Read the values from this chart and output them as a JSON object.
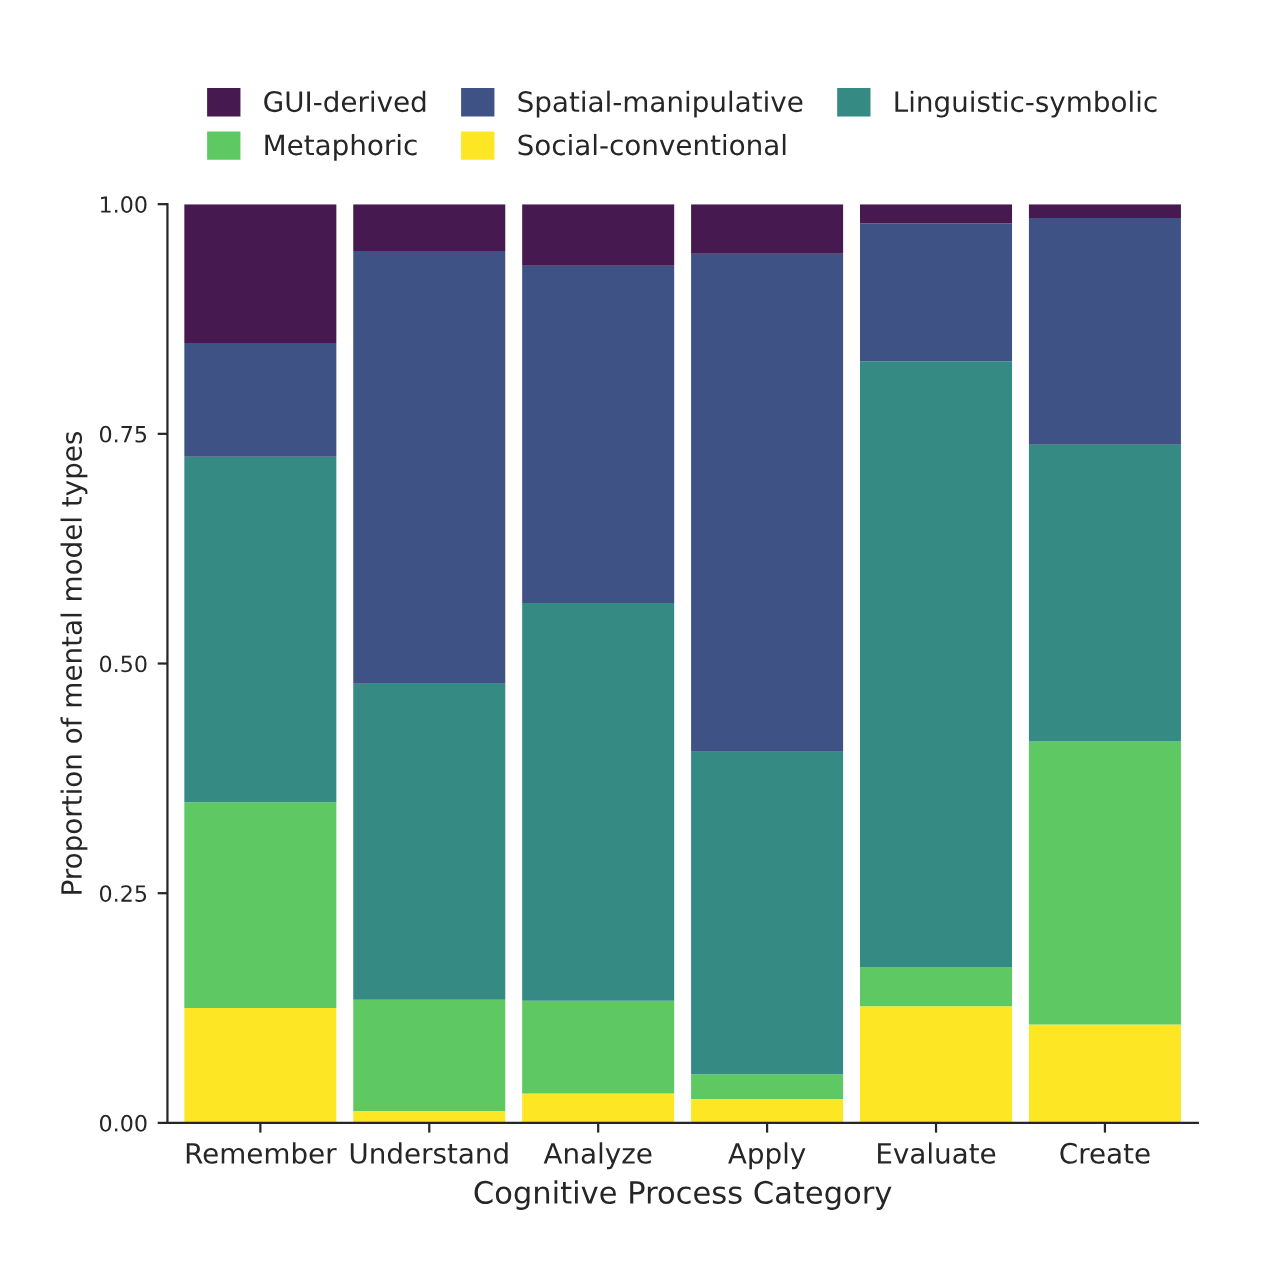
{
  "chart_data": {
    "type": "bar",
    "stacked": true,
    "xlabel": "Cognitive Process Category",
    "ylabel": "Proportion of mental model types",
    "categories": [
      "Remember",
      "Understand",
      "Analyze",
      "Apply",
      "Evaluate",
      "Create"
    ],
    "series": [
      {
        "name": "Social-conventional",
        "color": "#fde725",
        "values": [
          0.125,
          0.013,
          0.032,
          0.026,
          0.127,
          0.107
        ]
      },
      {
        "name": "Metaphoric",
        "color": "#5ec962",
        "values": [
          0.224,
          0.121,
          0.101,
          0.027,
          0.042,
          0.308
        ]
      },
      {
        "name": "Linguistic-symbolic",
        "color": "#358a84",
        "values": [
          0.376,
          0.344,
          0.433,
          0.351,
          0.66,
          0.323
        ]
      },
      {
        "name": "Spatial-manipulative",
        "color": "#3f5285",
        "values": [
          0.124,
          0.471,
          0.367,
          0.542,
          0.15,
          0.247
        ]
      },
      {
        "name": "GUI-derived",
        "color": "#461a50",
        "values": [
          0.151,
          0.051,
          0.067,
          0.054,
          0.021,
          0.015
        ]
      }
    ],
    "ylim": [
      0,
      1.0
    ],
    "yticks": [
      {
        "value": 0,
        "label": "0.00"
      },
      {
        "value": 0.25,
        "label": "0.25"
      },
      {
        "value": 0.5,
        "label": "0.50"
      },
      {
        "value": 0.75,
        "label": "0.75"
      },
      {
        "value": 1.0,
        "label": "1.00"
      }
    ],
    "grid": false,
    "legend": "top"
  }
}
